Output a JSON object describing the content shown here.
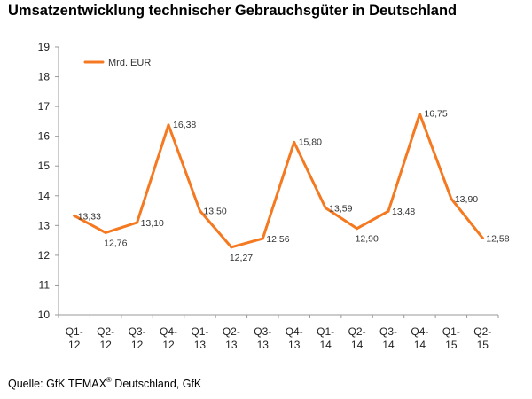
{
  "title": "Umsatzentwicklung technischer Gebrauchsgüter in Deutschland",
  "source": {
    "prefix": "Quelle: GfK TEMAX",
    "superscript": "®",
    "suffix": " Deutschland, GfK"
  },
  "colors": {
    "line": "#F47920",
    "axis": "#999999"
  },
  "chart_data": {
    "type": "line",
    "title": "Umsatzentwicklung technischer Gebrauchsgüter in Deutschland",
    "xlabel": "",
    "ylabel": "",
    "ylim": [
      10,
      19
    ],
    "yticks": [
      "10",
      "11",
      "12",
      "13",
      "14",
      "15",
      "16",
      "17",
      "18",
      "19"
    ],
    "grid": false,
    "legend_position": "top-left",
    "categories": [
      [
        "Q1-",
        "12"
      ],
      [
        "Q2-",
        "12"
      ],
      [
        "Q3-",
        "12"
      ],
      [
        "Q4-",
        "12"
      ],
      [
        "Q1-",
        "13"
      ],
      [
        "Q2-",
        "13"
      ],
      [
        "Q3-",
        "13"
      ],
      [
        "Q4-",
        "13"
      ],
      [
        "Q1-",
        "14"
      ],
      [
        "Q2-",
        "14"
      ],
      [
        "Q3-",
        "14"
      ],
      [
        "Q4-",
        "14"
      ],
      [
        "Q1-",
        "15"
      ],
      [
        "Q2-",
        "15"
      ]
    ],
    "series": [
      {
        "name": "Mrd. EUR",
        "values": [
          13.33,
          12.76,
          13.1,
          16.38,
          13.5,
          12.27,
          12.56,
          15.8,
          13.59,
          12.9,
          13.48,
          16.75,
          13.9,
          12.58
        ],
        "labels": [
          "13,33",
          "12,76",
          "13,10",
          "16,38",
          "13,50",
          "12,27",
          "12,56",
          "15,80",
          "13,59",
          "12,90",
          "13,48",
          "16,75",
          "13,90",
          "12,58"
        ]
      }
    ]
  }
}
